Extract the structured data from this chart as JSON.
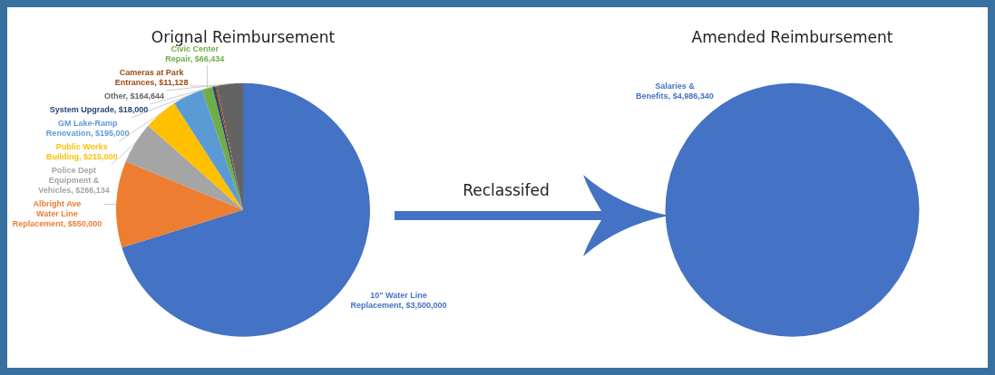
{
  "chart_data": [
    {
      "type": "pie",
      "title": "Orignal Reimbursement",
      "categories": [
        "10\" Water Line Replacement",
        "Albright Ave Water Line Replacement",
        "Police Dept Equipment & Vehicles",
        "Public Works Building",
        "GM Lake-Ramp Renovation",
        "Civic Center Repair",
        "System Upgrade",
        "Cameras at Park Entrances",
        "Other"
      ],
      "values": [
        3500000,
        550000,
        266134,
        215000,
        195000,
        66434,
        18000,
        11128,
        164644
      ],
      "value_labels": [
        "$3,500,000",
        "$550,000",
        "$266,134",
        "$215,000",
        "$195,000",
        "$66,434",
        "$18,000",
        "$11,128",
        "$164,644"
      ],
      "colors": [
        "#4472c4",
        "#ed7d31",
        "#a5a5a5",
        "#ffc000",
        "#5b9bd5",
        "#70ad47",
        "#264478",
        "#9e480e",
        "#636363"
      ],
      "annotations": [
        "Reclassifed"
      ]
    },
    {
      "type": "pie",
      "title": "Amended Reimbursement",
      "categories": [
        "Salaries & Benefits"
      ],
      "values": [
        4986340
      ],
      "value_labels": [
        "$4,986,340"
      ],
      "colors": [
        "#4472c4"
      ]
    }
  ]
}
